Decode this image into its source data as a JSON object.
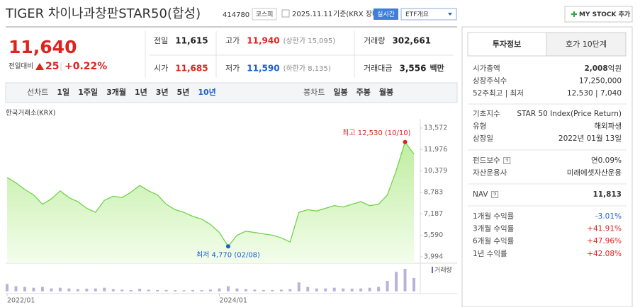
{
  "header": {
    "title": "TIGER 차이나과창판STAR50(합성)",
    "code": "414780",
    "market": "코스피",
    "date": "2025.11.11",
    "basis": "기준(KRX 장마감)",
    "realtime": "실시간",
    "etf_overview": "ETF개요",
    "my_stock": "MY STOCK 추가"
  },
  "price": {
    "current": "11,640",
    "change_label": "전일대비",
    "change": "25",
    "change_rate": "+0.22%",
    "color": "#e0231f"
  },
  "stats": [
    {
      "label": "전일",
      "value": "11,615",
      "color": "#222"
    },
    {
      "label": "고가",
      "value": "11,940",
      "note": "(상한가 15,095)",
      "color": "#e0231f"
    },
    {
      "label": "거래량",
      "value": "302,661",
      "color": "#222"
    },
    {
      "label": "시가",
      "value": "11,685",
      "color": "#e0231f"
    },
    {
      "label": "저가",
      "value": "11,590",
      "note": "(하한가 8,135)",
      "color": "#1a5fd0"
    },
    {
      "label": "거래대금",
      "value": "3,556",
      "unit": "백만",
      "color": "#222"
    }
  ],
  "chart_tabs": {
    "line_label": "선차트",
    "line": [
      "1일",
      "1주일",
      "3개월",
      "1년",
      "3년",
      "5년",
      "10년"
    ],
    "active": 6,
    "candle_label": "봉차트",
    "candle": [
      "일봉",
      "주봉",
      "월봉"
    ]
  },
  "chart_data": {
    "type": "area",
    "source": "한국거래소(KRX)",
    "categories": [
      "2022/01",
      null,
      null,
      null,
      null,
      null,
      null,
      null,
      null,
      null,
      null,
      null,
      null,
      null,
      null,
      null,
      null,
      null,
      null,
      null,
      null,
      null,
      null,
      null,
      "2024/01",
      null,
      null,
      null,
      null,
      null,
      null,
      null,
      null,
      null,
      null,
      null,
      null,
      null,
      null,
      null,
      null,
      null,
      null,
      null,
      null,
      null,
      null
    ],
    "values": [
      9900,
      9500,
      9000,
      8600,
      7900,
      8300,
      8900,
      8400,
      8100,
      7600,
      7300,
      8200,
      8500,
      8400,
      8800,
      9300,
      8900,
      8600,
      7900,
      7500,
      7300,
      7000,
      6800,
      6400,
      5800,
      4770,
      5600,
      5900,
      5800,
      5700,
      5600,
      5400,
      5100,
      7300,
      7500,
      7400,
      7600,
      7800,
      7700,
      7900,
      8100,
      7800,
      7900,
      8600,
      10400,
      12530,
      11640
    ],
    "color": "#72d24a",
    "ylim": [
      3994,
      13572
    ],
    "yticks": [
      {
        "value": 13572,
        "label": "13,572"
      },
      {
        "value": 11976,
        "label": "11,976"
      },
      {
        "value": 10379,
        "label": "10,379"
      },
      {
        "value": 8783,
        "label": "8,783"
      },
      {
        "value": 7187,
        "label": "7,187"
      },
      {
        "value": 5590,
        "label": "5,590"
      },
      {
        "value": 3994,
        "label": "3,994"
      }
    ],
    "grid": false,
    "high_label": "최고 12,530 (10/10)",
    "high_color": "#e0231f",
    "low_label": "최저 4,770 (02/08)",
    "low_color": "#1a5fd0",
    "volume": {
      "name": "거래량",
      "color": "#b8b3da",
      "ylim": [
        0,
        1600000
      ],
      "values": [
        500000,
        350000,
        300000,
        250000,
        300000,
        200000,
        250000,
        200000,
        150000,
        180000,
        200000,
        250000,
        150000,
        120000,
        100000,
        180000,
        120000,
        100000,
        100000,
        90000,
        80000,
        100000,
        90000,
        120000,
        200000,
        350000,
        200000,
        150000,
        120000,
        100000,
        100000,
        120000,
        150000,
        600000,
        300000,
        200000,
        200000,
        250000,
        200000,
        180000,
        200000,
        250000,
        300000,
        700000,
        1300000,
        1500000,
        900000
      ]
    }
  },
  "side": {
    "tabs": [
      "투자정보",
      "호가 10단계"
    ],
    "groups": [
      [
        {
          "label": "시가총액",
          "value": "2,008",
          "unit": "억원",
          "bold": true
        },
        {
          "label": "상장주식수",
          "value": "17,250,000"
        },
        {
          "label": "52주최고 | 최저",
          "value": "12,530 | 7,040"
        }
      ],
      [
        {
          "label": "기초지수",
          "value": "STAR 50 Index(Price Return)"
        },
        {
          "label": "유형",
          "value": "해외파생"
        },
        {
          "label": "상장일",
          "value": "2022년 01월 13일"
        }
      ],
      [
        {
          "label": "펀드보수",
          "value": "연0.09%",
          "info": true
        },
        {
          "label": "자산운용사",
          "value": "미래에셋자산운용"
        }
      ],
      [
        {
          "label": "NAV",
          "value": "11,813",
          "info": true,
          "bold": true
        }
      ],
      [
        {
          "label": "1개월 수익률",
          "value": "-3.01%"
        },
        {
          "label": "3개월 수익률",
          "value": "+41.91%"
        },
        {
          "label": "6개월 수익률",
          "value": "+47.96%"
        },
        {
          "label": "1년 수익률",
          "value": "+42.08%"
        }
      ]
    ]
  }
}
